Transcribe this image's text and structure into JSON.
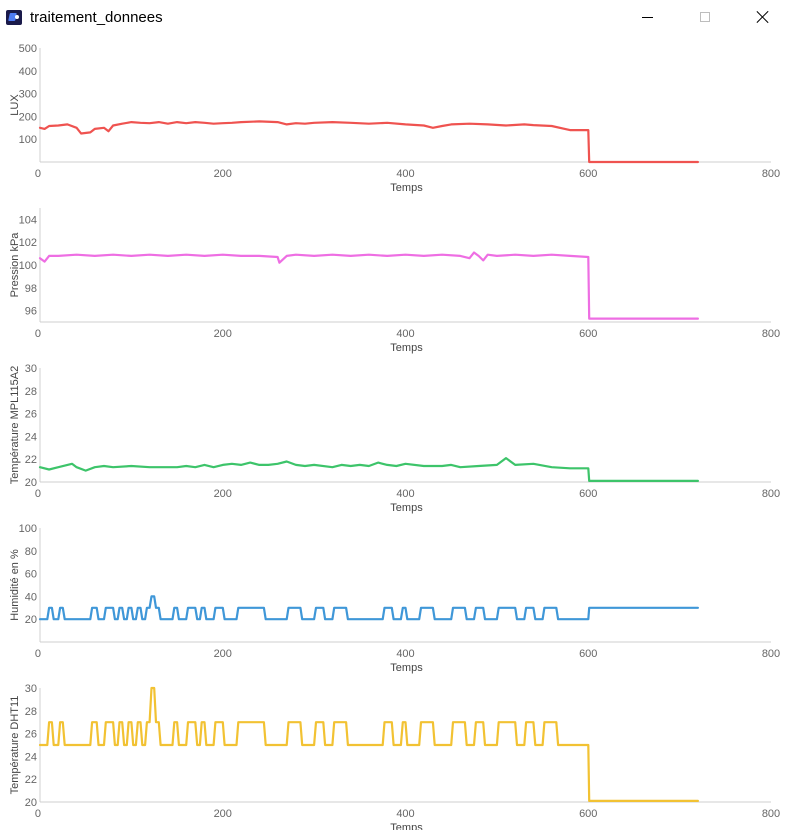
{
  "window": {
    "title": "traitement_donnees",
    "icons": {
      "app": "app-icon",
      "minimize": "minimize-icon",
      "maximize": "maximize-icon",
      "close": "close-icon"
    }
  },
  "chart_data": [
    {
      "type": "line",
      "ylabel": "LUX",
      "xlabel": "Temps",
      "color": "#ef5350",
      "xlim": [
        0,
        800
      ],
      "ylim": [
        0,
        500
      ],
      "xticks": [
        0,
        200,
        400,
        600,
        800
      ],
      "yticks": [
        100,
        200,
        300,
        400,
        500
      ],
      "grid": false,
      "series": [
        {
          "x": [
            0,
            5,
            10,
            20,
            30,
            40,
            45,
            55,
            60,
            70,
            75,
            80,
            90,
            100,
            110,
            120,
            130,
            140,
            150,
            160,
            170,
            180,
            190,
            200,
            210,
            220,
            240,
            260,
            270,
            280,
            290,
            300,
            320,
            340,
            360,
            380,
            400,
            420,
            430,
            440,
            450,
            470,
            490,
            510,
            530,
            540,
            560,
            580,
            600,
            601,
            720
          ],
          "y": [
            150,
            145,
            158,
            160,
            165,
            150,
            125,
            130,
            145,
            150,
            135,
            160,
            168,
            175,
            172,
            170,
            175,
            168,
            175,
            170,
            175,
            172,
            168,
            170,
            172,
            175,
            178,
            175,
            165,
            170,
            168,
            172,
            175,
            172,
            168,
            172,
            165,
            160,
            150,
            158,
            165,
            168,
            165,
            160,
            165,
            162,
            158,
            140,
            140,
            0,
            0
          ]
        }
      ]
    },
    {
      "type": "line",
      "ylabel": "Pression kPa",
      "xlabel": "Temps",
      "color": "#ee6ee3",
      "xlim": [
        0,
        800
      ],
      "ylim": [
        95,
        105
      ],
      "xticks": [
        0,
        200,
        400,
        600,
        800
      ],
      "yticks": [
        96,
        98,
        100,
        102,
        104
      ],
      "grid": false,
      "series": [
        {
          "x": [
            0,
            5,
            10,
            20,
            40,
            60,
            80,
            100,
            120,
            140,
            160,
            180,
            200,
            220,
            240,
            260,
            262,
            270,
            280,
            300,
            320,
            340,
            360,
            380,
            400,
            420,
            440,
            460,
            470,
            475,
            480,
            485,
            490,
            500,
            520,
            540,
            560,
            580,
            600,
            601,
            720
          ],
          "y": [
            100.6,
            100.3,
            100.8,
            100.8,
            100.9,
            100.8,
            100.9,
            100.8,
            100.9,
            100.8,
            100.9,
            100.8,
            100.9,
            100.8,
            100.8,
            100.7,
            100.2,
            100.8,
            100.9,
            100.8,
            100.9,
            100.8,
            100.9,
            100.8,
            100.9,
            100.8,
            100.9,
            100.8,
            100.6,
            101.1,
            100.8,
            100.4,
            100.9,
            100.8,
            100.9,
            100.8,
            100.9,
            100.8,
            100.7,
            95.3,
            95.3
          ]
        }
      ]
    },
    {
      "type": "line",
      "ylabel": "Température MPL115A2",
      "xlabel": "Temps",
      "color": "#3dc46a",
      "xlim": [
        0,
        800
      ],
      "ylim": [
        20,
        30
      ],
      "xticks": [
        0,
        200,
        400,
        600,
        800
      ],
      "yticks": [
        20,
        22,
        24,
        26,
        28,
        30
      ],
      "grid": false,
      "series": [
        {
          "x": [
            0,
            10,
            20,
            35,
            40,
            50,
            60,
            70,
            80,
            100,
            120,
            150,
            160,
            170,
            180,
            190,
            200,
            210,
            220,
            230,
            240,
            250,
            260,
            270,
            280,
            290,
            300,
            320,
            330,
            340,
            350,
            360,
            370,
            380,
            390,
            400,
            420,
            440,
            450,
            460,
            480,
            500,
            510,
            520,
            540,
            560,
            580,
            600,
            601,
            720
          ],
          "y": [
            21.3,
            21.1,
            21.3,
            21.6,
            21.3,
            21.0,
            21.3,
            21.4,
            21.3,
            21.4,
            21.3,
            21.3,
            21.4,
            21.3,
            21.5,
            21.3,
            21.5,
            21.6,
            21.5,
            21.7,
            21.5,
            21.5,
            21.6,
            21.8,
            21.5,
            21.4,
            21.5,
            21.3,
            21.5,
            21.4,
            21.5,
            21.4,
            21.7,
            21.5,
            21.4,
            21.6,
            21.4,
            21.4,
            21.5,
            21.3,
            21.4,
            21.5,
            22.1,
            21.5,
            21.6,
            21.3,
            21.2,
            21.2,
            20.1,
            20.1
          ]
        }
      ]
    },
    {
      "type": "line",
      "ylabel": "Humidité en %",
      "xlabel": "Temps",
      "color": "#3f97d8",
      "xlim": [
        0,
        800
      ],
      "ylim": [
        0,
        100
      ],
      "xticks": [
        0,
        200,
        400,
        600,
        800
      ],
      "yticks": [
        20,
        40,
        60,
        80,
        100
      ],
      "grid": false,
      "series": [
        {
          "x": [
            0,
            8,
            10,
            13,
            15,
            20,
            22,
            25,
            27,
            55,
            57,
            62,
            64,
            70,
            72,
            80,
            82,
            85,
            87,
            90,
            92,
            95,
            97,
            100,
            102,
            105,
            107,
            110,
            112,
            115,
            117,
            120,
            122,
            125,
            127,
            130,
            132,
            145,
            147,
            150,
            152,
            160,
            162,
            170,
            172,
            175,
            177,
            180,
            182,
            190,
            192,
            200,
            202,
            215,
            217,
            245,
            247,
            270,
            272,
            285,
            287,
            300,
            302,
            310,
            312,
            320,
            322,
            335,
            337,
            375,
            377,
            385,
            387,
            395,
            397,
            400,
            402,
            415,
            417,
            430,
            432,
            450,
            452,
            465,
            467,
            475,
            477,
            485,
            487,
            500,
            502,
            520,
            522,
            530,
            532,
            540,
            542,
            550,
            552,
            565,
            567,
            600,
            601,
            720
          ],
          "y": [
            20,
            20,
            30,
            30,
            20,
            20,
            30,
            30,
            20,
            20,
            30,
            30,
            20,
            20,
            30,
            30,
            20,
            20,
            30,
            30,
            20,
            20,
            30,
            30,
            20,
            20,
            30,
            30,
            20,
            20,
            30,
            30,
            40,
            40,
            30,
            30,
            20,
            20,
            30,
            30,
            20,
            20,
            30,
            30,
            20,
            20,
            30,
            30,
            20,
            20,
            30,
            30,
            20,
            20,
            30,
            30,
            20,
            20,
            30,
            30,
            20,
            20,
            30,
            30,
            20,
            20,
            30,
            30,
            20,
            20,
            30,
            30,
            20,
            20,
            30,
            30,
            20,
            20,
            30,
            30,
            20,
            20,
            30,
            30,
            20,
            20,
            30,
            30,
            20,
            20,
            30,
            30,
            20,
            20,
            30,
            30,
            20,
            20,
            30,
            30,
            20,
            20,
            30,
            30
          ]
        }
      ]
    },
    {
      "type": "line",
      "ylabel": "Température DHT11",
      "xlabel": "Temps",
      "color": "#f2c233",
      "xlim": [
        0,
        800
      ],
      "ylim": [
        20,
        30
      ],
      "xticks": [
        0,
        200,
        400,
        600,
        800
      ],
      "yticks": [
        20,
        22,
        24,
        26,
        28,
        30
      ],
      "grid": false,
      "series": [
        {
          "x": [
            0,
            8,
            10,
            13,
            15,
            20,
            22,
            25,
            27,
            55,
            57,
            62,
            64,
            70,
            72,
            80,
            82,
            85,
            87,
            90,
            92,
            95,
            97,
            100,
            102,
            105,
            107,
            110,
            112,
            115,
            117,
            120,
            122,
            125,
            127,
            130,
            132,
            145,
            147,
            150,
            152,
            160,
            162,
            170,
            172,
            175,
            177,
            180,
            182,
            190,
            192,
            200,
            202,
            215,
            217,
            245,
            247,
            270,
            272,
            285,
            287,
            300,
            302,
            310,
            312,
            320,
            322,
            335,
            337,
            375,
            377,
            385,
            387,
            395,
            397,
            400,
            402,
            415,
            417,
            430,
            432,
            450,
            452,
            465,
            467,
            475,
            477,
            485,
            487,
            500,
            502,
            520,
            522,
            530,
            532,
            540,
            542,
            550,
            552,
            565,
            567,
            600,
            601,
            720
          ],
          "y": [
            25,
            25,
            27,
            27,
            25,
            25,
            27,
            27,
            25,
            25,
            27,
            27,
            25,
            25,
            27,
            27,
            25,
            25,
            27,
            27,
            25,
            25,
            27,
            27,
            25,
            25,
            27,
            27,
            25,
            25,
            27,
            27,
            30,
            30,
            27,
            27,
            25,
            25,
            27,
            27,
            25,
            25,
            27,
            27,
            25,
            25,
            27,
            27,
            25,
            25,
            27,
            27,
            25,
            25,
            27,
            27,
            25,
            25,
            27,
            27,
            25,
            25,
            27,
            27,
            25,
            25,
            27,
            27,
            25,
            25,
            27,
            27,
            25,
            25,
            27,
            27,
            25,
            25,
            27,
            27,
            25,
            25,
            27,
            27,
            25,
            25,
            27,
            27,
            25,
            25,
            27,
            27,
            25,
            25,
            27,
            27,
            25,
            25,
            27,
            27,
            25,
            25,
            20.1,
            20.1
          ]
        }
      ]
    }
  ]
}
